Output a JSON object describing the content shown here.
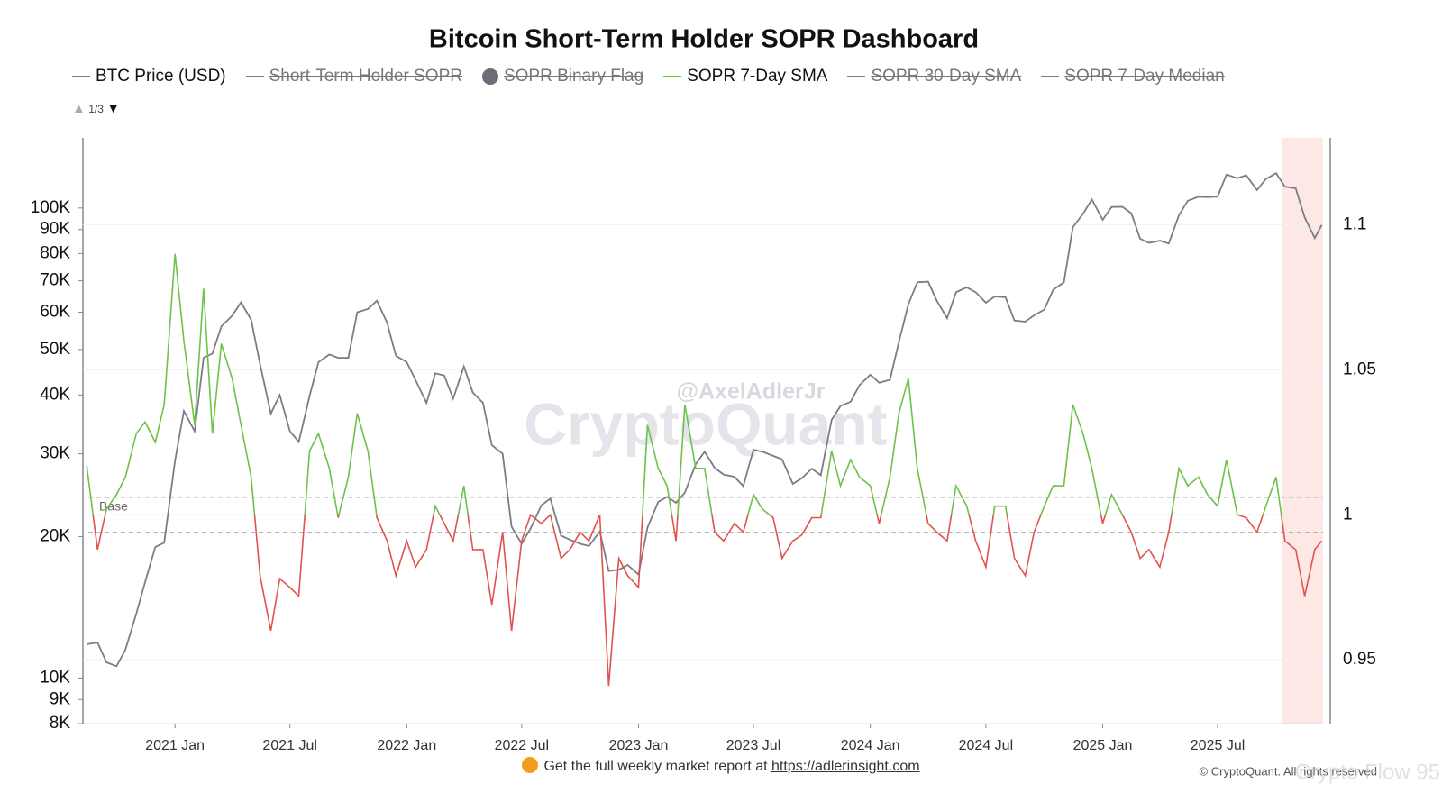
{
  "chart_data": {
    "type": "line",
    "title": "Bitcoin Short-Term Holder SOPR Dashboard",
    "legend_page": "1/3",
    "watermark": [
      "@AxelAdlerJr",
      "CryptoQuant"
    ],
    "footer": {
      "text": "Get the full weekly market report at",
      "link": "https://adlerinsight.com"
    },
    "copyright": "© CryptoQuant. All rights reserved",
    "overlay_watermark": "Crypto Flow 95",
    "log_scale": true,
    "xlim": [
      "2020-08-09",
      "2025-12-14"
    ],
    "xticks": [
      {
        "value": "2021-01-01",
        "label": "2021 Jan"
      },
      {
        "value": "2021-07-01",
        "label": "2021 Jul"
      },
      {
        "value": "2022-01-01",
        "label": "2022 Jan"
      },
      {
        "value": "2022-07-01",
        "label": "2022 Jul"
      },
      {
        "value": "2023-01-01",
        "label": "2023 Jan"
      },
      {
        "value": "2023-07-01",
        "label": "2023 Jul"
      },
      {
        "value": "2024-01-01",
        "label": "2024 Jan"
      },
      {
        "value": "2024-07-01",
        "label": "2024 Jul"
      },
      {
        "value": "2025-01-01",
        "label": "2025 Jan"
      },
      {
        "value": "2025-07-01",
        "label": "2025 Jul"
      }
    ],
    "ylim": [
      8000,
      141000
    ],
    "yticks": [
      {
        "value": 8000,
        "label": "8K"
      },
      {
        "value": 9000,
        "label": "9K"
      },
      {
        "value": 10000,
        "label": "10K"
      },
      {
        "value": 20000,
        "label": "20K"
      },
      {
        "value": 30000,
        "label": "30K"
      },
      {
        "value": 40000,
        "label": "40K"
      },
      {
        "value": 50000,
        "label": "50K"
      },
      {
        "value": 60000,
        "label": "60K"
      },
      {
        "value": 70000,
        "label": "70K"
      },
      {
        "value": 80000,
        "label": "80K"
      },
      {
        "value": 90000,
        "label": "90K"
      },
      {
        "value": 100000,
        "label": "100K"
      }
    ],
    "y2lim": [
      0.928,
      1.13
    ],
    "y2ticks": [
      0.95,
      1,
      1.05,
      1.1
    ],
    "reference_lines": {
      "label": "Base",
      "values": [
        0.994,
        1,
        1.006
      ],
      "axis": "y2"
    },
    "highlight": {
      "from": "2025-10-10",
      "to": "2025-12-14",
      "color": "#fde8e6"
    },
    "x": [
      "2020-08-15",
      "2020-09-01",
      "2020-09-15",
      "2020-10-01",
      "2020-10-15",
      "2020-11-01",
      "2020-11-15",
      "2020-12-01",
      "2020-12-15",
      "2021-01-01",
      "2021-01-15",
      "2021-02-01",
      "2021-02-15",
      "2021-03-01",
      "2021-03-15",
      "2021-04-01",
      "2021-04-15",
      "2021-05-01",
      "2021-05-15",
      "2021-06-01",
      "2021-06-15",
      "2021-07-01",
      "2021-07-15",
      "2021-08-01",
      "2021-08-15",
      "2021-09-01",
      "2021-09-15",
      "2021-10-01",
      "2021-10-15",
      "2021-11-01",
      "2021-11-15",
      "2021-12-01",
      "2021-12-15",
      "2022-01-01",
      "2022-01-15",
      "2022-02-01",
      "2022-02-15",
      "2022-03-01",
      "2022-03-15",
      "2022-04-01",
      "2022-04-15",
      "2022-05-01",
      "2022-05-15",
      "2022-06-01",
      "2022-06-15",
      "2022-07-01",
      "2022-07-15",
      "2022-08-01",
      "2022-08-15",
      "2022-09-01",
      "2022-09-15",
      "2022-10-01",
      "2022-10-15",
      "2022-11-01",
      "2022-11-15",
      "2022-12-01",
      "2022-12-15",
      "2023-01-01",
      "2023-01-15",
      "2023-02-01",
      "2023-02-15",
      "2023-03-01",
      "2023-03-15",
      "2023-04-01",
      "2023-04-15",
      "2023-05-01",
      "2023-05-15",
      "2023-06-01",
      "2023-06-15",
      "2023-07-01",
      "2023-07-15",
      "2023-08-01",
      "2023-08-15",
      "2023-09-01",
      "2023-09-15",
      "2023-10-01",
      "2023-10-15",
      "2023-11-01",
      "2023-11-15",
      "2023-12-01",
      "2023-12-15",
      "2024-01-01",
      "2024-01-15",
      "2024-02-01",
      "2024-02-15",
      "2024-03-01",
      "2024-03-15",
      "2024-04-01",
      "2024-04-15",
      "2024-05-01",
      "2024-05-15",
      "2024-06-01",
      "2024-06-15",
      "2024-07-01",
      "2024-07-15",
      "2024-08-01",
      "2024-08-15",
      "2024-09-01",
      "2024-09-15",
      "2024-10-01",
      "2024-10-15",
      "2024-11-01",
      "2024-11-15",
      "2024-12-01",
      "2024-12-15",
      "2025-01-01",
      "2025-01-15",
      "2025-02-01",
      "2025-02-15",
      "2025-03-01",
      "2025-03-15",
      "2025-04-01",
      "2025-04-15",
      "2025-05-01",
      "2025-05-15",
      "2025-06-01",
      "2025-06-15",
      "2025-07-01",
      "2025-07-15",
      "2025-08-01",
      "2025-08-15",
      "2025-09-01",
      "2025-09-15",
      "2025-10-01",
      "2025-10-15",
      "2025-11-01",
      "2025-11-15",
      "2025-12-01",
      "2025-12-12"
    ],
    "series": [
      {
        "name": "BTC Price (USD)",
        "color": "#7d7c86",
        "visible": true,
        "values": [
          11800,
          11900,
          10800,
          10600,
          11500,
          13700,
          16000,
          19000,
          19400,
          29000,
          37000,
          33500,
          48000,
          49000,
          56000,
          59000,
          63000,
          57800,
          46500,
          36500,
          40000,
          33500,
          31800,
          39800,
          47000,
          48800,
          48000,
          48000,
          60000,
          61000,
          63500,
          57000,
          48500,
          47000,
          43000,
          38500,
          44500,
          44000,
          39300,
          46000,
          40500,
          38500,
          31300,
          30000,
          21000,
          19300,
          20800,
          23300,
          24100,
          20100,
          19700,
          19300,
          19100,
          20500,
          16900,
          17000,
          17400,
          16600,
          20900,
          23700,
          24300,
          23600,
          24800,
          28500,
          30300,
          28000,
          27100,
          26800,
          25600,
          30600,
          30300,
          29700,
          29200,
          25900,
          26600,
          27900,
          27000,
          35400,
          37900,
          38700,
          42000,
          44200,
          42500,
          43100,
          51900,
          62400,
          69500,
          69700,
          63400,
          58300,
          66200,
          67800,
          66200,
          62900,
          64800,
          64600,
          57600,
          57300,
          59100,
          60800,
          67000,
          69500,
          91000,
          97200,
          104300,
          94400,
          100500,
          100600,
          97500,
          86000,
          84300,
          85200,
          84000,
          96500,
          103600,
          105700,
          105500,
          105700,
          117800,
          115700,
          117400,
          109200,
          115300,
          118600,
          111000,
          110100,
          95500,
          86300,
          92000
        ]
      },
      {
        "name": "Short-Term Holder SOPR",
        "color": "#7d7c86",
        "visible": false
      },
      {
        "name": "SOPR Binary Flag",
        "color": "#6e6d77",
        "visible": false,
        "marker": "circle"
      },
      {
        "name": "SOPR 7-Day SMA",
        "color": "#6cc24a",
        "color_below": "#e0534f",
        "threshold": 1,
        "axis": "y2",
        "visible": true,
        "values": [
          1.017,
          0.988,
          1.002,
          1.007,
          1.013,
          1.028,
          1.032,
          1.025,
          1.038,
          1.09,
          1.06,
          1.031,
          1.078,
          1.028,
          1.059,
          1.047,
          1.031,
          1.013,
          0.979,
          0.96,
          0.978,
          0.975,
          0.972,
          1.022,
          1.028,
          1.016,
          0.999,
          1.013,
          1.035,
          1.022,
          0.999,
          0.991,
          0.979,
          0.991,
          0.982,
          0.988,
          1.003,
          0.997,
          0.991,
          1.01,
          0.988,
          0.988,
          0.969,
          0.994,
          0.96,
          0.991,
          1.0,
          0.997,
          1.0,
          0.985,
          0.988,
          0.994,
          0.991,
          1.0,
          0.941,
          0.985,
          0.979,
          0.975,
          1.031,
          1.016,
          1.01,
          0.991,
          1.038,
          1.016,
          1.016,
          0.994,
          0.991,
          0.997,
          0.994,
          1.007,
          1.002,
          0.999,
          0.985,
          0.991,
          0.993,
          0.999,
          0.999,
          1.022,
          1.01,
          1.019,
          1.013,
          1.01,
          0.997,
          1.013,
          1.035,
          1.047,
          1.016,
          0.997,
          0.994,
          0.991,
          1.01,
          1.003,
          0.991,
          0.982,
          1.003,
          1.003,
          0.985,
          0.979,
          0.994,
          1.003,
          1.01,
          1.01,
          1.038,
          1.028,
          1.016,
          0.997,
          1.007,
          1.0,
          0.994,
          0.985,
          0.988,
          0.982,
          0.994,
          1.016,
          1.01,
          1.013,
          1.007,
          1.003,
          1.019,
          1.0,
          0.999,
          0.994,
          1.003,
          1.013,
          0.991,
          0.988,
          0.972,
          0.988,
          0.991
        ]
      },
      {
        "name": "SOPR 30-Day SMA",
        "color": "#7d7c86",
        "visible": false
      },
      {
        "name": "SOPR 7-Day Median",
        "color": "#7d7c86",
        "visible": false
      }
    ]
  }
}
